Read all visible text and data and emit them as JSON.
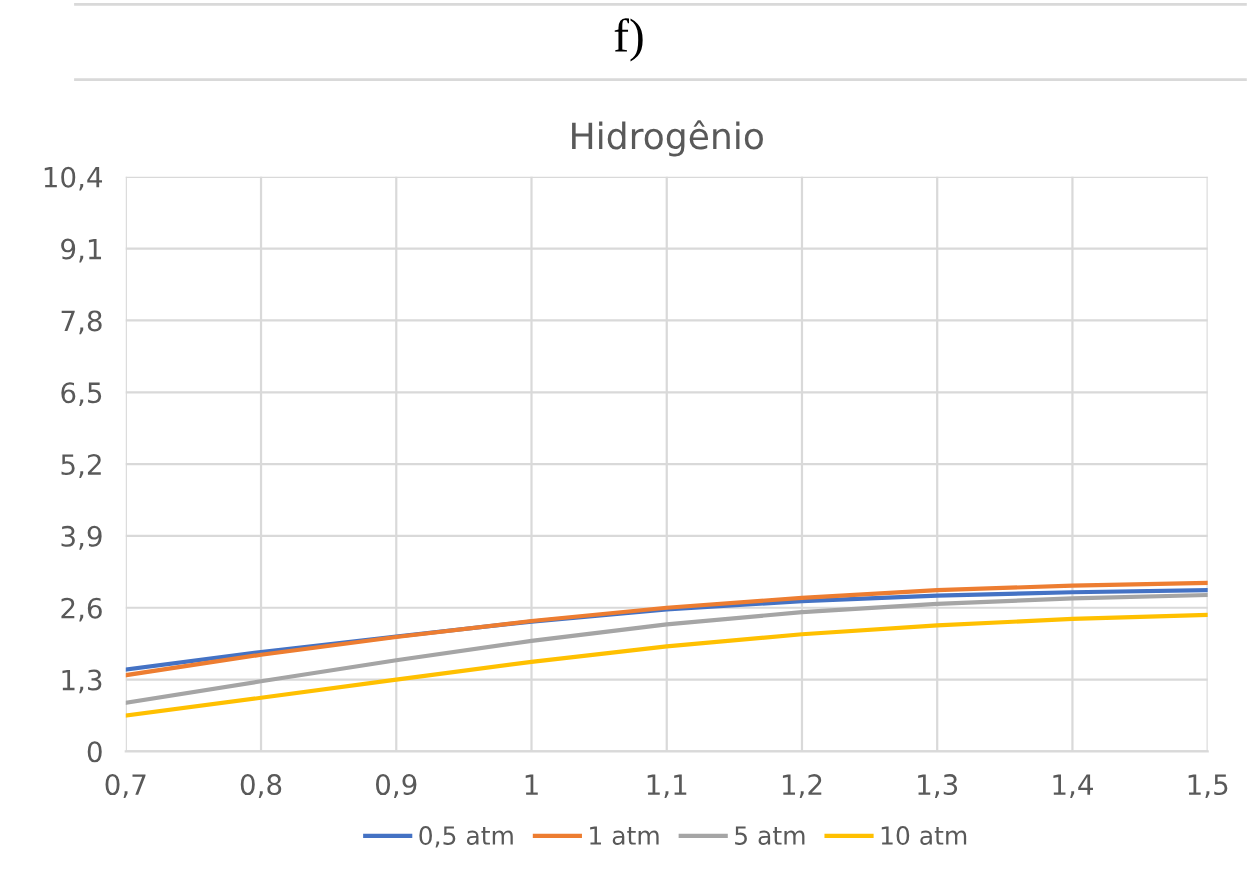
{
  "chart_data": {
    "type": "line",
    "title": "Hidrogênio",
    "annotations": [
      "f)"
    ],
    "x": [
      0.7,
      0.8,
      0.9,
      1.0,
      1.1,
      1.2,
      1.3,
      1.4,
      1.5
    ],
    "series": [
      {
        "name": "0,5 atm",
        "color": "#4472c4",
        "values": [
          1.48,
          1.8,
          2.08,
          2.35,
          2.57,
          2.72,
          2.82,
          2.88,
          2.92
        ]
      },
      {
        "name": "1 atm",
        "color": "#ed7d31",
        "values": [
          1.38,
          1.75,
          2.07,
          2.36,
          2.6,
          2.78,
          2.92,
          3.0,
          3.05
        ]
      },
      {
        "name": "5 atm",
        "color": "#a5a5a5",
        "values": [
          0.88,
          1.27,
          1.65,
          2.0,
          2.3,
          2.52,
          2.67,
          2.77,
          2.83
        ]
      },
      {
        "name": "10 atm",
        "color": "#ffc000",
        "values": [
          0.65,
          0.97,
          1.3,
          1.62,
          1.9,
          2.12,
          2.28,
          2.4,
          2.47
        ]
      }
    ],
    "xlim": [
      0.7,
      1.5
    ],
    "xticks": [
      {
        "value": 0.7,
        "label": "0,7"
      },
      {
        "value": 0.8,
        "label": "0,8"
      },
      {
        "value": 0.9,
        "label": "0,9"
      },
      {
        "value": 1,
        "label": "1"
      },
      {
        "value": 1.1,
        "label": "1,1"
      },
      {
        "value": 1.2,
        "label": "1,2"
      },
      {
        "value": 1.3,
        "label": "1,3"
      },
      {
        "value": 1.4,
        "label": "1,4"
      },
      {
        "value": 1.5,
        "label": "1,5"
      }
    ],
    "ylim": [
      0,
      10.4
    ],
    "yticks": [
      0,
      {
        "value": 1.3,
        "label": "1,3"
      },
      {
        "value": 2.6,
        "label": "2,6"
      },
      {
        "value": 3.9,
        "label": "3,9"
      },
      {
        "value": 5.2,
        "label": "5,2"
      },
      {
        "value": 6.5,
        "label": "6,5"
      },
      {
        "value": 7.8,
        "label": "7,8"
      },
      {
        "value": 9.1,
        "label": "9,1"
      },
      {
        "value": 10.4,
        "label": "10,4"
      }
    ],
    "grid": true,
    "legend": "bottom",
    "marker": "none",
    "line_style": "solid"
  }
}
